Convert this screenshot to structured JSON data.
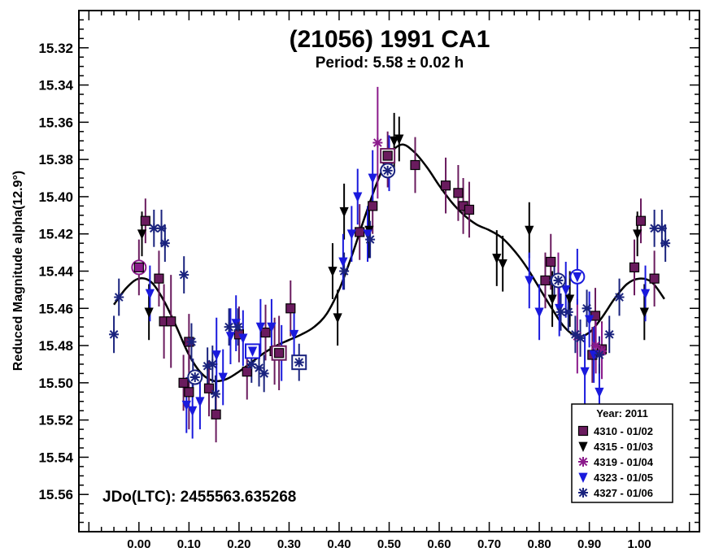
{
  "chart_data": {
    "type": "scatter",
    "title": "(21056) 1991 CA1",
    "subtitle": "Period: 5.58 ± 0.02 h",
    "xlabel": "",
    "ylabel": "Reduced Magnitude alpha(12.9°)",
    "annotation": "JDo(LTC): 2455563.635268",
    "xlim": [
      -0.12,
      1.12
    ],
    "ylim": [
      15.58,
      15.3
    ],
    "y_inverted": true,
    "xticks": [
      "0.00",
      "0.10",
      "0.20",
      "0.30",
      "0.40",
      "0.50",
      "0.60",
      "0.70",
      "0.80",
      "0.90",
      "1.00"
    ],
    "yticks": [
      "15.32",
      "15.34",
      "15.36",
      "15.38",
      "15.40",
      "15.42",
      "15.44",
      "15.46",
      "15.48",
      "15.50",
      "15.52",
      "15.54",
      "15.56"
    ],
    "legend_title": "Year: 2011",
    "legend_position": "bottom-right",
    "series": [
      {
        "name": "4310 - 01/02",
        "marker": "square",
        "color": "#6a1b5e",
        "points": [
          [
            0.0,
            15.438,
            0.015
          ],
          [
            0.013,
            15.413,
            0.012
          ],
          [
            0.04,
            15.444,
            0.015
          ],
          [
            0.05,
            15.467,
            0.02
          ],
          [
            0.064,
            15.467,
            0.025
          ],
          [
            0.089,
            15.5,
            0.015
          ],
          [
            0.1,
            15.505,
            0.02
          ],
          [
            0.1,
            15.478,
            0.015
          ],
          [
            0.14,
            15.503,
            0.015
          ],
          [
            0.154,
            15.517,
            0.015
          ],
          [
            0.2,
            15.474,
            0.015
          ],
          [
            0.216,
            15.494,
            0.015
          ],
          [
            0.253,
            15.473,
            0.015
          ],
          [
            0.271,
            15.483,
            0.018
          ],
          [
            0.28,
            15.484,
            0.02
          ],
          [
            0.303,
            15.46,
            0.015
          ],
          [
            0.441,
            15.419,
            0.015
          ],
          [
            0.467,
            15.405,
            0.015
          ],
          [
            0.497,
            15.38,
            0.015
          ],
          [
            0.552,
            15.383,
            0.015
          ],
          [
            0.613,
            15.394,
            0.015
          ],
          [
            0.638,
            15.398,
            0.015
          ],
          [
            0.648,
            15.405,
            0.015
          ],
          [
            0.66,
            15.407,
            0.015
          ],
          [
            0.812,
            15.445,
            0.015
          ],
          [
            0.823,
            15.435,
            0.015
          ],
          [
            0.906,
            15.485,
            0.015
          ],
          [
            0.912,
            15.464,
            0.015
          ],
          [
            0.925,
            15.482,
            0.015
          ],
          [
            0.99,
            15.438,
            0.015
          ],
          [
            1.003,
            15.413,
            0.012
          ],
          [
            1.03,
            15.444,
            0.015
          ]
        ]
      },
      {
        "name": "4315 - 01/03",
        "marker": "triangle-down",
        "color": "#000000",
        "points": [
          [
            0.006,
            15.42,
            0.012
          ],
          [
            0.02,
            15.462,
            0.015
          ],
          [
            0.387,
            15.44,
            0.015
          ],
          [
            0.397,
            15.465,
            0.015
          ],
          [
            0.41,
            15.408,
            0.015
          ],
          [
            0.46,
            15.418,
            0.015
          ],
          [
            0.51,
            15.37,
            0.015
          ],
          [
            0.52,
            15.369,
            0.012
          ],
          [
            0.715,
            15.433,
            0.015
          ],
          [
            0.727,
            15.436,
            0.015
          ],
          [
            0.78,
            15.418,
            0.015
          ],
          [
            0.826,
            15.455,
            0.015
          ],
          [
            0.861,
            15.455,
            0.015
          ],
          [
            0.996,
            15.42,
            0.012
          ],
          [
            1.01,
            15.462,
            0.015
          ]
        ]
      },
      {
        "name": "4319 - 01/04",
        "marker": "asterisk",
        "color": "#8b1a8b",
        "points": [
          [
            0.477,
            15.371,
            0.03
          ],
          [
            0.838,
            15.445,
            0.015
          ],
          [
            0.876,
            15.475,
            0.02
          ],
          [
            0.913,
            15.48,
            0.015
          ],
          [
            0.925,
            15.483,
            0.015
          ]
        ]
      },
      {
        "name": "4323 - 01/05",
        "marker": "triangle-down",
        "color": "#1a1add",
        "points": [
          [
            0.022,
            15.452,
            0.015
          ],
          [
            0.095,
            15.512,
            0.015
          ],
          [
            0.107,
            15.515,
            0.015
          ],
          [
            0.122,
            15.51,
            0.015
          ],
          [
            0.155,
            15.485,
            0.02
          ],
          [
            0.168,
            15.497,
            0.015
          ],
          [
            0.183,
            15.475,
            0.015
          ],
          [
            0.194,
            15.468,
            0.015
          ],
          [
            0.208,
            15.476,
            0.015
          ],
          [
            0.243,
            15.47,
            0.015
          ],
          [
            0.265,
            15.47,
            0.015
          ],
          [
            0.285,
            15.484,
            0.015
          ],
          [
            0.31,
            15.474,
            0.015
          ],
          [
            0.408,
            15.435,
            0.015
          ],
          [
            0.425,
            15.42,
            0.015
          ],
          [
            0.437,
            15.4,
            0.015
          ],
          [
            0.457,
            15.42,
            0.015
          ],
          [
            0.467,
            15.39,
            0.015
          ],
          [
            0.5,
            15.382,
            0.015
          ],
          [
            0.78,
            15.445,
            0.015
          ],
          [
            0.8,
            15.462,
            0.015
          ],
          [
            0.84,
            15.46,
            0.015
          ],
          [
            0.853,
            15.45,
            0.015
          ],
          [
            0.876,
            15.443,
            0.015
          ],
          [
            0.891,
            15.494,
            0.02
          ],
          [
            0.9,
            15.466,
            0.015
          ],
          [
            0.909,
            15.485,
            0.015
          ],
          [
            0.92,
            15.505,
            0.015
          ],
          [
            1.012,
            15.452,
            0.015
          ]
        ]
      },
      {
        "name": "4327 - 01/06",
        "marker": "asterisk",
        "color": "#1a237e",
        "points": [
          [
            -0.05,
            15.474,
            0.01
          ],
          [
            -0.04,
            15.454,
            0.01
          ],
          [
            0.03,
            15.417,
            0.01
          ],
          [
            0.045,
            15.417,
            0.01
          ],
          [
            0.052,
            15.425,
            0.01
          ],
          [
            0.09,
            15.442,
            0.01
          ],
          [
            0.105,
            15.478,
            0.01
          ],
          [
            0.108,
            15.497,
            0.01
          ],
          [
            0.137,
            15.491,
            0.01
          ],
          [
            0.147,
            15.49,
            0.01
          ],
          [
            0.153,
            15.506,
            0.01
          ],
          [
            0.18,
            15.47,
            0.01
          ],
          [
            0.198,
            15.47,
            0.01
          ],
          [
            0.225,
            15.49,
            0.01
          ],
          [
            0.24,
            15.492,
            0.01
          ],
          [
            0.25,
            15.495,
            0.01
          ],
          [
            0.32,
            15.489,
            0.01
          ],
          [
            0.41,
            15.44,
            0.01
          ],
          [
            0.462,
            15.423,
            0.01
          ],
          [
            0.83,
            15.445,
            0.01
          ],
          [
            0.843,
            15.462,
            0.01
          ],
          [
            0.858,
            15.462,
            0.01
          ],
          [
            0.872,
            15.474,
            0.01
          ],
          [
            0.882,
            15.476,
            0.01
          ],
          [
            0.895,
            15.46,
            0.01
          ],
          [
            0.92,
            15.485,
            0.01
          ],
          [
            0.94,
            15.474,
            0.01
          ],
          [
            0.96,
            15.454,
            0.01
          ],
          [
            1.03,
            15.417,
            0.01
          ],
          [
            1.045,
            15.417,
            0.01
          ],
          [
            1.052,
            15.425,
            0.01
          ]
        ]
      }
    ],
    "fit_curve": [
      [
        -0.05,
        15.458
      ],
      [
        -0.025,
        15.449
      ],
      [
        0.0,
        15.444
      ],
      [
        0.025,
        15.446
      ],
      [
        0.05,
        15.456
      ],
      [
        0.075,
        15.47
      ],
      [
        0.1,
        15.485
      ],
      [
        0.125,
        15.495
      ],
      [
        0.15,
        15.499
      ],
      [
        0.175,
        15.498
      ],
      [
        0.2,
        15.494
      ],
      [
        0.225,
        15.489
      ],
      [
        0.25,
        15.484
      ],
      [
        0.275,
        15.48
      ],
      [
        0.3,
        15.477
      ],
      [
        0.325,
        15.474
      ],
      [
        0.35,
        15.47
      ],
      [
        0.375,
        15.463
      ],
      [
        0.4,
        15.45
      ],
      [
        0.425,
        15.432
      ],
      [
        0.45,
        15.412
      ],
      [
        0.475,
        15.393
      ],
      [
        0.5,
        15.378
      ],
      [
        0.525,
        15.372
      ],
      [
        0.55,
        15.376
      ],
      [
        0.575,
        15.384
      ],
      [
        0.6,
        15.394
      ],
      [
        0.625,
        15.403
      ],
      [
        0.65,
        15.41
      ],
      [
        0.675,
        15.415
      ],
      [
        0.7,
        15.418
      ],
      [
        0.725,
        15.422
      ],
      [
        0.75,
        15.429
      ],
      [
        0.775,
        15.438
      ],
      [
        0.8,
        15.449
      ],
      [
        0.825,
        15.46
      ],
      [
        0.85,
        15.47
      ],
      [
        0.875,
        15.475
      ],
      [
        0.9,
        15.473
      ],
      [
        0.925,
        15.465
      ],
      [
        0.95,
        15.455
      ],
      [
        0.975,
        15.447
      ],
      [
        1.0,
        15.444
      ],
      [
        1.025,
        15.446
      ],
      [
        1.05,
        15.455
      ]
    ],
    "circled_points": [
      [
        0.0,
        15.438,
        "square"
      ],
      [
        0.112,
        15.497,
        "asterisk"
      ],
      [
        0.497,
        15.386,
        "asterisk"
      ],
      [
        0.838,
        15.445,
        "asterisk"
      ],
      [
        0.876,
        15.443,
        "triangle-down"
      ]
    ],
    "boxed_points": [
      [
        0.227,
        15.483,
        "triangle-down"
      ],
      [
        0.28,
        15.484,
        "square"
      ],
      [
        0.32,
        15.489,
        "asterisk"
      ],
      [
        0.497,
        15.378,
        "square"
      ]
    ]
  }
}
